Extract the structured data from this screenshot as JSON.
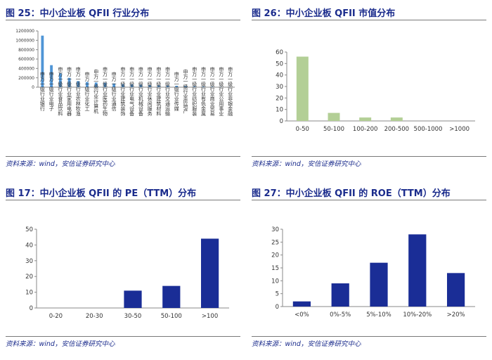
{
  "chart_data": [
    {
      "type": "bar",
      "title": "图 25：中小企业板 QFII 行业分布",
      "source": "资料来源：wind，安信证券研究中心",
      "categories": [
        "申万一级行业银行",
        "申万一级行业电子",
        "申万一级行业食品饮料",
        "申万一级行业家用电器",
        "申万一级行业农林牧渔",
        "申万一级行业化工",
        "申万一级行业计算机",
        "申万一级行业医药生物",
        "申万一级行业通信",
        "申万一级行业建筑装饰",
        "申万一级行业电气设备",
        "申万一级行业机械设备",
        "申万一级行业休闲服务",
        "申万一级行业建筑材料",
        "申万一级行业交通运输",
        "申万一级行业传媒",
        "申万一级行业房地产",
        "申万一级行业纺织服装",
        "申万一级行业有色金属",
        "申万一级行业商业贸易",
        "申万一级行业公用事业",
        "申万一级行业非银金融"
      ],
      "values": [
        1100000,
        470000,
        300000,
        200000,
        130000,
        110000,
        100000,
        95000,
        80000,
        65000,
        60000,
        55000,
        45000,
        40000,
        35000,
        30000,
        25000,
        20000,
        15000,
        12000,
        8000,
        5000
      ],
      "yticks": [
        "1200000",
        "1000000",
        "800000",
        "600000",
        "400000",
        "200000",
        "0"
      ],
      "ylim": [
        0,
        1200000
      ],
      "color": "#4f95d6"
    },
    {
      "type": "bar",
      "title": "图 26：中小企业板 QFII 市值分布",
      "source": "资料来源：wind，安信证券研究中心",
      "categories": [
        "0-50",
        "50-100",
        "100-200",
        "200-500",
        "500-1000",
        ">1000"
      ],
      "values": [
        56,
        7,
        3,
        3,
        0,
        0
      ],
      "yticks": [
        "60",
        "50",
        "40",
        "30",
        "20",
        "10",
        "0"
      ],
      "ylim": [
        0,
        60
      ],
      "color": "#b3cf96"
    },
    {
      "type": "bar",
      "title": "图 17：中小企业板 QFII 的 PE（TTM）分布",
      "source": "资料来源：wind，安信证券研究中心",
      "categories": [
        "0-20",
        "20-30",
        "30-50",
        "50-100",
        ">100"
      ],
      "values": [
        0,
        0,
        11,
        14,
        44
      ],
      "yticks": [
        "50",
        "40",
        "30",
        "20",
        "10",
        "0"
      ],
      "ylim": [
        0,
        50
      ],
      "color": "#1a2d96"
    },
    {
      "type": "bar",
      "title": "图 27：中小企业板 QFII 的 ROE（TTM）分布",
      "source": "资料来源：wind，安信证券研究中心",
      "categories": [
        "<0%",
        "0%-5%",
        "5%-10%",
        "10%-20%",
        ">20%"
      ],
      "values": [
        2,
        9,
        17,
        28,
        13
      ],
      "yticks": [
        "30",
        "25",
        "20",
        "15",
        "10",
        "5",
        "0"
      ],
      "ylim": [
        0,
        30
      ],
      "color": "#1a2d96"
    }
  ]
}
